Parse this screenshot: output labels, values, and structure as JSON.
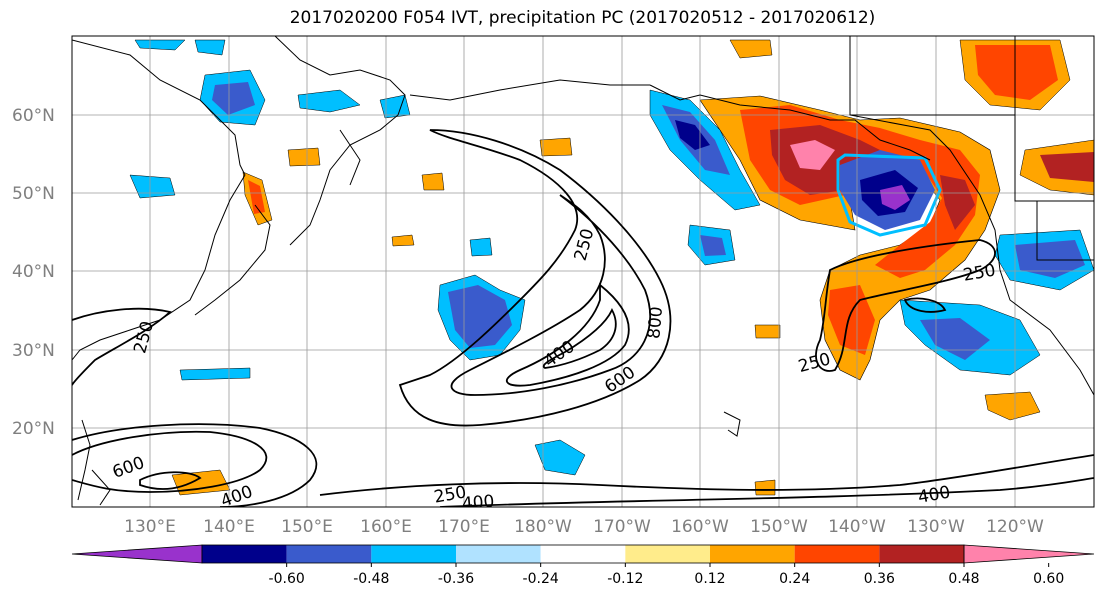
{
  "title": "2017020200 F054 IVT, precipitation PC (2017020512 - 2017020612)",
  "map": {
    "lat_ticks": [
      "20°N",
      "30°N",
      "40°N",
      "50°N",
      "60°N"
    ],
    "lon_ticks": [
      "130°E",
      "140°E",
      "150°E",
      "160°E",
      "170°E",
      "180°W",
      "170°W",
      "160°W",
      "150°W",
      "140°W",
      "130°W",
      "120°W"
    ],
    "ivt_contour_levels": [
      "250",
      "400",
      "600",
      "800"
    ],
    "contour_labels": [
      {
        "text": "250",
        "id": "label-250-central"
      },
      {
        "text": "400",
        "id": "label-400-central"
      },
      {
        "text": "600",
        "id": "label-600-central"
      },
      {
        "text": "800",
        "id": "label-800-central"
      },
      {
        "text": "250",
        "id": "label-250-west"
      },
      {
        "text": "250",
        "id": "label-250-east"
      },
      {
        "text": "250",
        "id": "label-250-southeast"
      },
      {
        "text": "600",
        "id": "label-600-southwest"
      },
      {
        "text": "400",
        "id": "label-400-southwest"
      },
      {
        "text": "250",
        "id": "label-250-south"
      },
      {
        "text": "400",
        "id": "label-400-south"
      },
      {
        "text": "400",
        "id": "label-400-southeast"
      }
    ]
  },
  "colorbar": {
    "tick_labels": [
      "-0.60",
      "-0.48",
      "-0.36",
      "-0.24",
      "-0.12",
      "0.12",
      "0.24",
      "0.36",
      "0.48",
      "0.60"
    ],
    "colors": [
      "#9932cc",
      "#00008b",
      "#3a5bcc",
      "#00bfff",
      "#b0e2ff",
      "#ffffff",
      "#ffec8b",
      "#ffa500",
      "#ff4500",
      "#b22222",
      "#ff82ab"
    ]
  }
}
